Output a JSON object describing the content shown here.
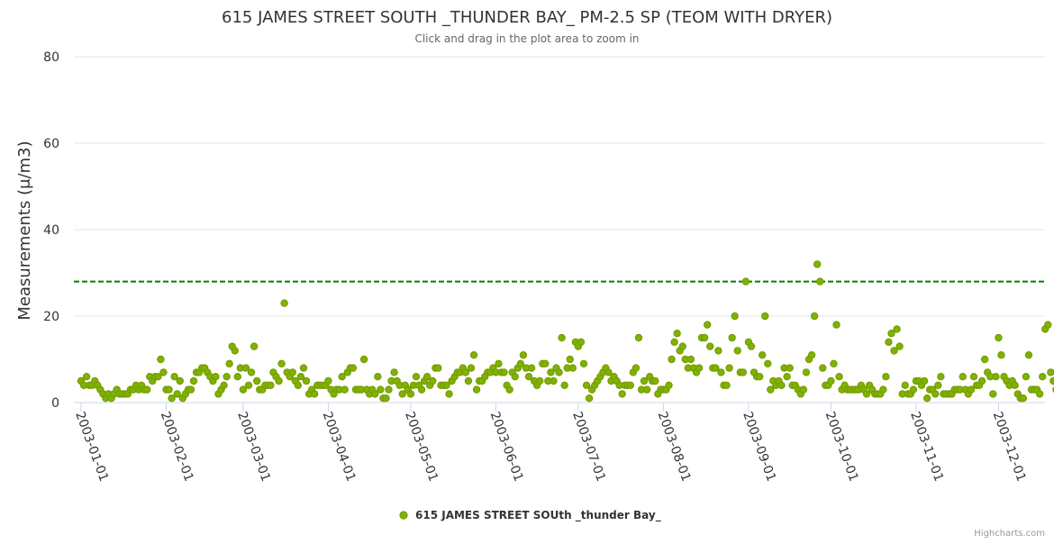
{
  "chart_data": {
    "type": "scatter",
    "title": "615 JAMES STREET SOUTH _THUNDER BAY_ PM-2.5 SP (TEOM WITH DRYER)",
    "subtitle": "Click and drag in the plot area to zoom in",
    "ylabel": "Measurements (μ/m3)",
    "xlabel": "",
    "ylim": [
      0,
      80
    ],
    "yticks": [
      "0",
      "20",
      "40",
      "60",
      "80"
    ],
    "xlim": [
      "2003-01-01",
      "2003-12-13"
    ],
    "xticks": [
      "2003-01-01",
      "2003-02-01",
      "2003-03-01",
      "2003-04-01",
      "2003-05-01",
      "2003-06-01",
      "2003-07-01",
      "2003-08-01",
      "2003-09-01",
      "2003-10-01",
      "2003-11-01",
      "2003-12-01"
    ],
    "threshold": 28,
    "grid": true,
    "legend_position": "bottom-center",
    "series": [
      {
        "name": "615 JAMES STREET SOUth _thunder Bay_",
        "color": "#7cb500",
        "x_start": "2003-01-01",
        "values": [
          5,
          4,
          6,
          4,
          4,
          5,
          4,
          3,
          2,
          1,
          2,
          1,
          2,
          3,
          2,
          2,
          2,
          2,
          3,
          3,
          4,
          3,
          4,
          3,
          3,
          6,
          5,
          6,
          6,
          10,
          7,
          3,
          3,
          1,
          6,
          2,
          5,
          1,
          2,
          3,
          3,
          5,
          7,
          7,
          8,
          8,
          7,
          6,
          5,
          6,
          2,
          3,
          4,
          6,
          9,
          13,
          12,
          6,
          8,
          3,
          8,
          4,
          7,
          13,
          5,
          3,
          3,
          4,
          4,
          4,
          7,
          6,
          5,
          9,
          23,
          7,
          6,
          7,
          5,
          4,
          6,
          8,
          5,
          2,
          3,
          2,
          4,
          4,
          4,
          4,
          5,
          3,
          2,
          3,
          3,
          6,
          3,
          7,
          8,
          8,
          3,
          3,
          3,
          10,
          3,
          2,
          3,
          2,
          6,
          3,
          1,
          1,
          3,
          5,
          7,
          5,
          4,
          2,
          4,
          3,
          2,
          4,
          6,
          4,
          3,
          5,
          6,
          4,
          5,
          8,
          8,
          4,
          4,
          4,
          2,
          5,
          6,
          7,
          7,
          8,
          7,
          5,
          8,
          11,
          3,
          5,
          5,
          6,
          7,
          7,
          8,
          7,
          9,
          7,
          7,
          4,
          3,
          7,
          6,
          8,
          9,
          11,
          8,
          6,
          8,
          5,
          4,
          5,
          9,
          9,
          5,
          7,
          5,
          8,
          7,
          15,
          4,
          8,
          10,
          8,
          14,
          13,
          14,
          9,
          4,
          1,
          3,
          4,
          5,
          6,
          7,
          8,
          7,
          5,
          6,
          5,
          4,
          2,
          4,
          4,
          4,
          7,
          8,
          15,
          3,
          5,
          3,
          6,
          5,
          5,
          2,
          3,
          3,
          3,
          4,
          10,
          14,
          16,
          12,
          13,
          10,
          8,
          10,
          8,
          7,
          8,
          15,
          15,
          18,
          13,
          8,
          8,
          12,
          7,
          4,
          4,
          8,
          15,
          20,
          12,
          7,
          7,
          28,
          14,
          13,
          7,
          6,
          6,
          11,
          20,
          9,
          3,
          5,
          4,
          5,
          4,
          8,
          6,
          8,
          4,
          4,
          3,
          2,
          3,
          7,
          10,
          11,
          20,
          32,
          28,
          8,
          4,
          4,
          5,
          9,
          18,
          6,
          3,
          4,
          3,
          3,
          3,
          3,
          3,
          4,
          3,
          2,
          4,
          3,
          2,
          2,
          2,
          3,
          6,
          14,
          16,
          12,
          17,
          13,
          2,
          4,
          2,
          2,
          3,
          5,
          5,
          4,
          5,
          1,
          3,
          3,
          2,
          4,
          6,
          2,
          2,
          2,
          2,
          3,
          3,
          3,
          6,
          3,
          2,
          3,
          6,
          4,
          4,
          5,
          10,
          7,
          6,
          2,
          6,
          15,
          11,
          6,
          5,
          4,
          5,
          4,
          2,
          1,
          1,
          6,
          11,
          3,
          3,
          3,
          2,
          6,
          17,
          18,
          7,
          5,
          3,
          9,
          2
        ]
      }
    ]
  },
  "credits": "Highcharts.com"
}
